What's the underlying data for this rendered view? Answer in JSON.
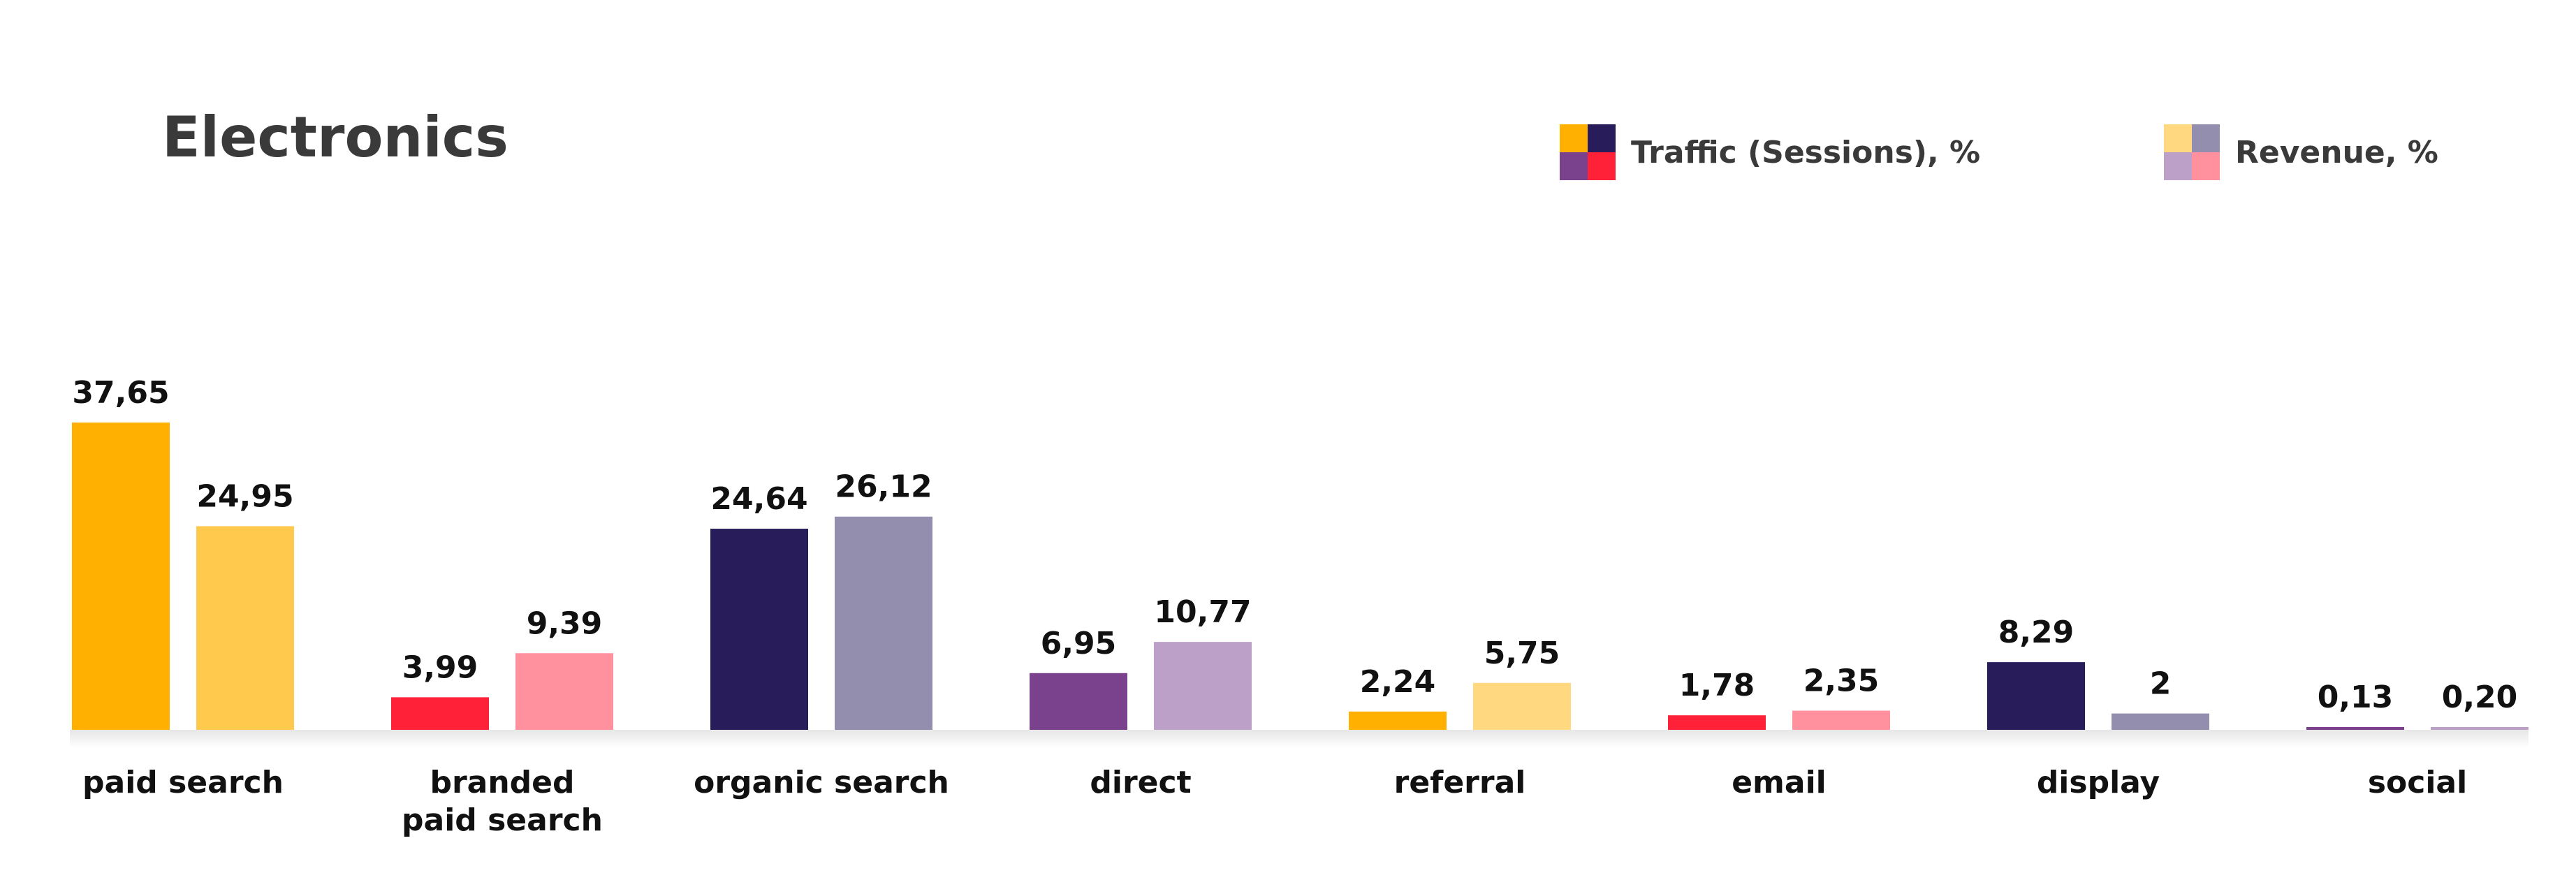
{
  "chart_data": {
    "type": "bar",
    "title": "Electronics",
    "categories": [
      "paid search",
      "branded\npaid search",
      "organic search",
      "direct",
      "referral",
      "email",
      "display",
      "social"
    ],
    "series": [
      {
        "name": "Traffic (Sessions), %",
        "values": [
          37.65,
          3.99,
          24.64,
          6.95,
          2.24,
          1.78,
          8.29,
          0.13
        ],
        "value_labels": [
          "37,65",
          "3,99",
          "24,64",
          "6,95",
          "2,24",
          "1,78",
          "8,29",
          "0,13"
        ],
        "colors": [
          "#FFB000",
          "#FF2138",
          "#281C5B",
          "#7A418C",
          "#FFB000",
          "#FF2138",
          "#281C5B",
          "#7A418C"
        ]
      },
      {
        "name": "Revenue, %",
        "values": [
          24.95,
          9.39,
          26.12,
          10.77,
          5.75,
          2.35,
          2,
          0.2
        ],
        "value_labels": [
          "24,95",
          "9,39",
          "26,12",
          "10,77",
          "5,75",
          "2,35",
          "2",
          "0,20"
        ],
        "colors": [
          "#FFC94E",
          "#FF919F",
          "#948EAE",
          "#BDA0C8",
          "#FFD87F",
          "#FF919F",
          "#948EAE",
          "#BDA0C8"
        ]
      }
    ],
    "xlabel": "",
    "ylabel": "",
    "ylim": [
      0,
      40
    ],
    "grid": false,
    "legend": "top-right",
    "legend_swatches": {
      "traffic": [
        "#FFB000",
        "#281C5B",
        "#7A418C",
        "#FF2138"
      ],
      "revenue": [
        "#FFD87F",
        "#948EAE",
        "#BDA0C8",
        "#FF919F"
      ]
    }
  }
}
